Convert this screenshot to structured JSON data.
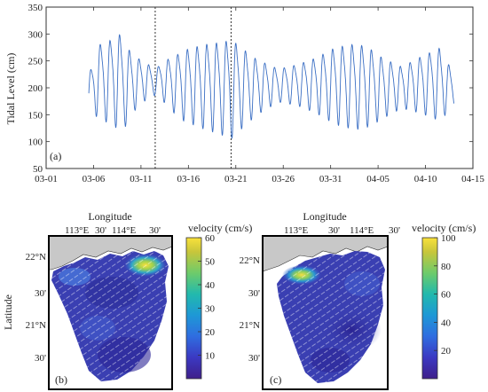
{
  "chart_data": [
    {
      "panel": "(a)",
      "type": "line",
      "ylabel": "Tidal Level (cm)",
      "ylim": [
        50,
        350
      ],
      "yticks": [
        50,
        100,
        150,
        200,
        250,
        300,
        350
      ],
      "xticks": [
        "03-01",
        "03-06",
        "03-11",
        "03-16",
        "03-21",
        "03-26",
        "03-31",
        "04-05",
        "04-10",
        "04-15"
      ],
      "xlim": [
        "2000-03-01",
        "2000-04-15"
      ],
      "grid": false,
      "vlines": [
        "2000-03-12T12:00",
        "2000-03-20T12:00"
      ],
      "series": [
        {
          "color": "#3b6fc4",
          "start": "2000-03-05T12:00",
          "end": "2000-04-13T00:00",
          "period_hours": 24.5,
          "envelope": [
            {
              "x": "2000-03-05T12:00",
              "max": 232,
              "min": 138
            },
            {
              "x": "2000-03-06T12:00",
              "max": 296,
              "min": 145
            },
            {
              "x": "2000-03-07T12:00",
              "max": 300,
              "min": 130
            },
            {
              "x": "2000-03-08T12:00",
              "max": 328,
              "min": 120
            },
            {
              "x": "2000-03-09T12:00",
              "max": 292,
              "min": 125
            },
            {
              "x": "2000-03-10T12:00",
              "max": 268,
              "min": 160
            },
            {
              "x": "2000-03-11T12:00",
              "max": 255,
              "min": 175
            },
            {
              "x": "2000-03-12T12:00",
              "max": 240,
              "min": 185
            },
            {
              "x": "2000-03-13T12:00",
              "max": 260,
              "min": 170
            },
            {
              "x": "2000-03-14T12:00",
              "max": 270,
              "min": 150
            },
            {
              "x": "2000-03-15T12:00",
              "max": 285,
              "min": 135
            },
            {
              "x": "2000-03-17T12:00",
              "max": 298,
              "min": 120
            },
            {
              "x": "2000-03-19T12:00",
              "max": 305,
              "min": 108
            },
            {
              "x": "2000-03-20T12:00",
              "max": 310,
              "min": 100
            },
            {
              "x": "2000-03-21T12:00",
              "max": 296,
              "min": 118
            },
            {
              "x": "2000-03-22T12:00",
              "max": 275,
              "min": 135
            },
            {
              "x": "2000-03-23T12:00",
              "max": 262,
              "min": 150
            },
            {
              "x": "2000-03-25T12:00",
              "max": 242,
              "min": 172
            },
            {
              "x": "2000-03-27T12:00",
              "max": 252,
              "min": 165
            },
            {
              "x": "2000-03-29T12:00",
              "max": 268,
              "min": 150
            },
            {
              "x": "2000-03-31T12:00",
              "max": 292,
              "min": 128
            },
            {
              "x": "2000-04-02T12:00",
              "max": 300,
              "min": 118
            },
            {
              "x": "2000-04-03T12:00",
              "max": 296,
              "min": 120
            },
            {
              "x": "2000-04-04T12:00",
              "max": 285,
              "min": 128
            },
            {
              "x": "2000-04-05T12:00",
              "max": 268,
              "min": 140
            },
            {
              "x": "2000-04-07T12:00",
              "max": 248,
              "min": 160
            },
            {
              "x": "2000-04-09T12:00",
              "max": 270,
              "min": 150
            },
            {
              "x": "2000-04-11T12:00",
              "max": 290,
              "min": 135
            },
            {
              "x": "2000-04-13T00:00",
              "max": 232,
              "min": 165
            }
          ]
        }
      ]
    },
    {
      "panel": "(b)",
      "type": "heatmap",
      "xlabel": "Longitude",
      "ylabel": "Latitude",
      "lon_ticks": [
        "113°E",
        "30'",
        "114°E",
        "30'"
      ],
      "lat_ticks": [
        "22°N",
        "30'",
        "21°N",
        "30'"
      ],
      "colorbar": {
        "title": "velocity (cm/s)",
        "ticks": [
          10,
          20,
          30,
          40,
          50,
          60
        ],
        "range": [
          0,
          60
        ]
      },
      "features": [
        "vector arrows",
        "high velocity near northeast coast"
      ]
    },
    {
      "panel": "(c)",
      "type": "heatmap",
      "xlabel": "Longitude",
      "ylabel": "",
      "lon_ticks": [
        "113°E",
        "30'",
        "114°E",
        "30'"
      ],
      "lat_ticks": [
        "22°N",
        "30'",
        "21°N",
        "30'"
      ],
      "colorbar": {
        "title": "velocity (cm/s)",
        "ticks": [
          20,
          40,
          60,
          80,
          100
        ],
        "range": [
          0,
          100
        ]
      },
      "features": [
        "vector arrows",
        "high velocity near northwest coast"
      ]
    }
  ],
  "colors": {
    "line": "#3b6fc4",
    "vline": "#333333",
    "land": "#c8c8c8",
    "ocean_base": "#3a3fb2",
    "colormap": [
      "#3e1f8a",
      "#3b39c2",
      "#2f6de0",
      "#1e98d6",
      "#22b9ad",
      "#6ecb6a",
      "#c8c63b",
      "#f9e13b"
    ]
  }
}
